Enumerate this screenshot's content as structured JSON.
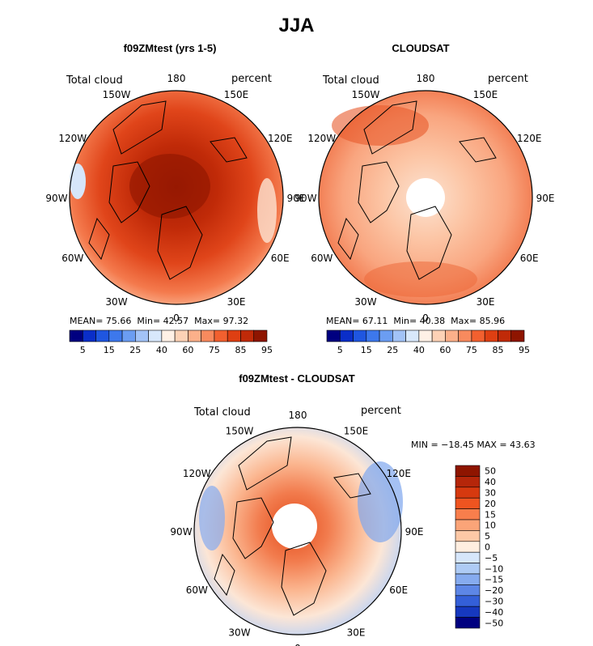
{
  "title": "JJA",
  "panels": [
    {
      "id": "model",
      "title": "f09ZMtest (yrs 1-5)",
      "left_label": "Total cloud",
      "right_label": "percent",
      "stats": {
        "mean_label": "MEAN=",
        "mean": "75.66",
        "min_label": "Min=",
        "min": "42.57",
        "max_label": "Max=",
        "max": "97.32"
      }
    },
    {
      "id": "obs",
      "title": "CLOUDSAT",
      "left_label": "Total cloud",
      "right_label": "percent",
      "stats": {
        "mean_label": "MEAN=",
        "mean": "67.11",
        "min_label": "Min=",
        "min": "40.38",
        "max_label": "Max=",
        "max": "85.96"
      }
    },
    {
      "id": "diff",
      "title": "f09ZMtest - CLOUDSAT",
      "left_label": "Total cloud",
      "right_label": "percent",
      "stats_text": "MIN = −18.45 MAX =   43.63"
    }
  ],
  "longitude_labels": [
    "180",
    "150E",
    "120E",
    "90E",
    "60E",
    "30E",
    "0",
    "30W",
    "60W",
    "90W",
    "120W",
    "150W"
  ],
  "colorbar_abs": {
    "colors": [
      "#000080",
      "#0a2ec8",
      "#1f56e0",
      "#3d78ec",
      "#6b9df2",
      "#a2c3f7",
      "#d8e8fb",
      "#fff1e6",
      "#fdd2b6",
      "#fcb08a",
      "#f88a5e",
      "#f2602f",
      "#de3f12",
      "#c02a08",
      "#8e1500"
    ],
    "labels": [
      "5",
      "15",
      "25",
      "40",
      "60",
      "75",
      "85",
      "95"
    ]
  },
  "colorbar_diff": {
    "colors": [
      "#8e1500",
      "#b5260a",
      "#d6390f",
      "#ef5420",
      "#f87e4c",
      "#fba478",
      "#fdc8a6",
      "#ffeee0",
      "#d6e6fa",
      "#aecbf5",
      "#86abef",
      "#5d86e6",
      "#345fd8",
      "#1638bf",
      "#000080"
    ],
    "labels": [
      "50",
      "40",
      "30",
      "20",
      "15",
      "10",
      "5",
      "0",
      "−5",
      "−10",
      "−15",
      "−20",
      "−30",
      "−40",
      "−50"
    ]
  }
}
